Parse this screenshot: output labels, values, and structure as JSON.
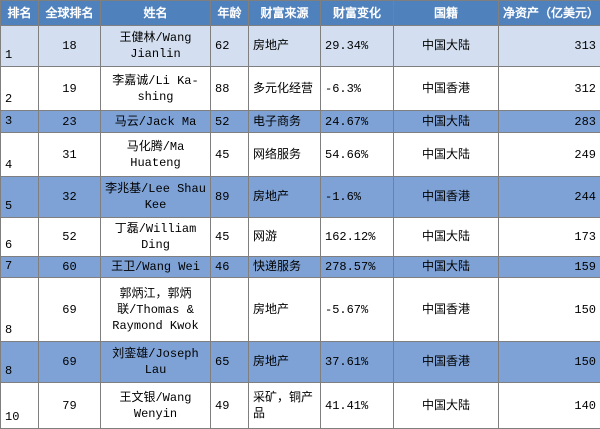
{
  "table": {
    "header": [
      "排名",
      "全球排名",
      "姓名",
      "年龄",
      "财富来源",
      "财富变化",
      "国籍",
      "净资产（亿美元）"
    ],
    "rows": [
      [
        "1",
        "18",
        "王健林/Wang Jianlin",
        "62",
        "房地产",
        "29.34%",
        "中国大陆",
        "313"
      ],
      [
        "2",
        "19",
        "李嘉诚/Li Ka-shing",
        "88",
        "多元化经营",
        "-6.3%",
        "中国香港",
        "312"
      ],
      [
        "3",
        "23",
        "马云/Jack Ma",
        "52",
        "电子商务",
        "24.67%",
        "中国大陆",
        "283"
      ],
      [
        "4",
        "31",
        "马化腾/Ma Huateng",
        "45",
        "网络服务",
        "54.66%",
        "中国大陆",
        "249"
      ],
      [
        "5",
        "32",
        "李兆基/Lee Shau Kee",
        "89",
        "房地产",
        "-1.6%",
        "中国香港",
        "244"
      ],
      [
        "6",
        "52",
        "丁磊/William Ding",
        "45",
        "网游",
        "162.12%",
        "中国大陆",
        "173"
      ],
      [
        "7",
        "60",
        "王卫/Wang Wei",
        "46",
        "快递服务",
        "278.57%",
        "中国大陆",
        "159"
      ],
      [
        "8",
        "69",
        "郭炳江，郭炳联/Thomas & Raymond Kwok",
        "",
        "房地产",
        "-5.67%",
        "中国香港",
        "150"
      ],
      [
        "8",
        "69",
        "刘銮雄/Joseph Lau",
        "65",
        "房地产",
        "37.61%",
        "中国香港",
        "150"
      ],
      [
        "10",
        "79",
        "王文银/Wang Wenyin",
        "49",
        "采矿，铜产品",
        "41.41%",
        "中国大陆",
        "140"
      ]
    ]
  }
}
